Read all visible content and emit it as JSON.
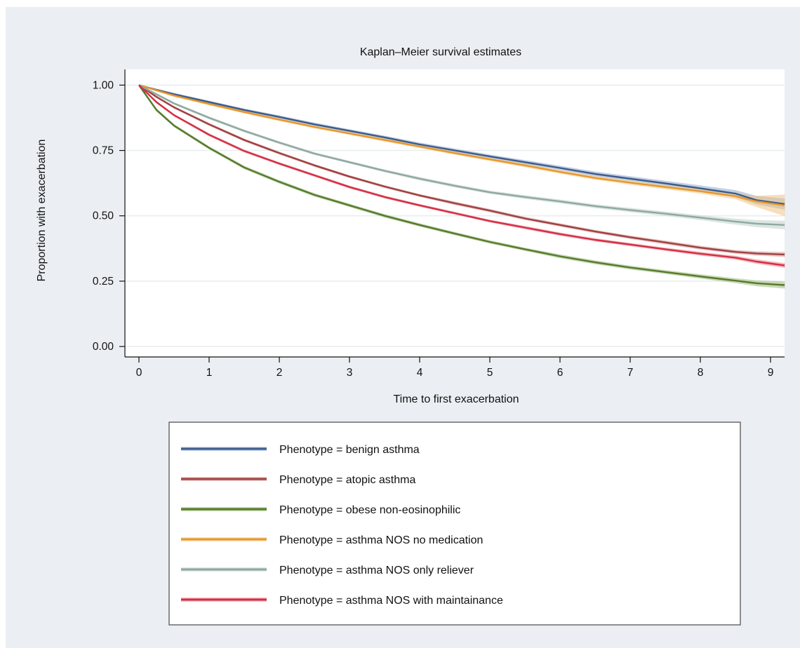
{
  "chart_data": {
    "type": "line",
    "title": "Kaplan–Meier survival estimates",
    "xlabel": "Time to first exacerbation",
    "ylabel": "Proportion with exacerbation",
    "xlim": [
      -0.2,
      9.2
    ],
    "ylim": [
      -0.04,
      1.06
    ],
    "xticks": [
      0,
      1,
      2,
      3,
      4,
      5,
      6,
      7,
      8,
      9
    ],
    "yticks": [
      0.0,
      0.25,
      0.5,
      0.75,
      1.0
    ],
    "ytick_labels": [
      "0.00",
      "0.25",
      "0.50",
      "0.75",
      "1.00"
    ],
    "grid": "horizontal",
    "legend_position": "bottom",
    "x": [
      0,
      0.25,
      0.5,
      1,
      1.5,
      2,
      2.5,
      3,
      3.5,
      4,
      4.5,
      5,
      5.5,
      6,
      6.5,
      7,
      7.5,
      8,
      8.5,
      8.8,
      9.2
    ],
    "series": [
      {
        "name": "Phenotype = benign asthma",
        "color": "#3a5b8c",
        "band_color": "#8fa9cf",
        "values": [
          1.0,
          0.982,
          0.965,
          0.935,
          0.905,
          0.878,
          0.85,
          0.825,
          0.8,
          0.773,
          0.75,
          0.727,
          0.705,
          0.683,
          0.66,
          0.642,
          0.624,
          0.605,
          0.585,
          0.56,
          0.545
        ],
        "ci_width": [
          0,
          0.003,
          0.004,
          0.004,
          0.004,
          0.005,
          0.005,
          0.005,
          0.005,
          0.006,
          0.006,
          0.006,
          0.007,
          0.007,
          0.008,
          0.008,
          0.009,
          0.01,
          0.012,
          0.015,
          0.02
        ]
      },
      {
        "name": "Phenotype = atopic asthma",
        "color": "#a0403f",
        "band_color": "#d49b9a",
        "values": [
          1.0,
          0.955,
          0.915,
          0.85,
          0.79,
          0.74,
          0.693,
          0.65,
          0.612,
          0.578,
          0.548,
          0.52,
          0.49,
          0.465,
          0.44,
          0.418,
          0.398,
          0.378,
          0.362,
          0.356,
          0.352
        ],
        "ci_width": [
          0,
          0.003,
          0.003,
          0.004,
          0.004,
          0.004,
          0.004,
          0.004,
          0.004,
          0.004,
          0.005,
          0.005,
          0.005,
          0.005,
          0.005,
          0.005,
          0.006,
          0.006,
          0.006,
          0.007,
          0.008
        ]
      },
      {
        "name": "Phenotype = obese non-eosinophilic",
        "color": "#557a2c",
        "band_color": "#9dbb7a",
        "values": [
          1.0,
          0.905,
          0.845,
          0.76,
          0.685,
          0.63,
          0.58,
          0.54,
          0.5,
          0.465,
          0.432,
          0.4,
          0.372,
          0.345,
          0.322,
          0.302,
          0.285,
          0.268,
          0.252,
          0.242,
          0.235
        ],
        "ci_width": [
          0,
          0.004,
          0.004,
          0.004,
          0.005,
          0.005,
          0.005,
          0.005,
          0.005,
          0.005,
          0.005,
          0.005,
          0.005,
          0.006,
          0.006,
          0.006,
          0.006,
          0.007,
          0.008,
          0.01,
          0.012
        ]
      },
      {
        "name": "Phenotype = asthma NOS no medication",
        "color": "#e8962a",
        "band_color": "#f2c684",
        "values": [
          1.0,
          0.98,
          0.96,
          0.928,
          0.897,
          0.868,
          0.84,
          0.815,
          0.79,
          0.765,
          0.74,
          0.716,
          0.693,
          0.668,
          0.645,
          0.627,
          0.61,
          0.594,
          0.575,
          0.555,
          0.54
        ],
        "ci_width": [
          0,
          0.003,
          0.003,
          0.004,
          0.004,
          0.004,
          0.004,
          0.004,
          0.005,
          0.005,
          0.005,
          0.005,
          0.006,
          0.006,
          0.006,
          0.007,
          0.007,
          0.008,
          0.01,
          0.02,
          0.04
        ]
      },
      {
        "name": "Phenotype = asthma NOS only reliever",
        "color": "#8fa8a0",
        "band_color": "#bfd0ca",
        "values": [
          1.0,
          0.965,
          0.93,
          0.875,
          0.825,
          0.78,
          0.738,
          0.705,
          0.672,
          0.642,
          0.615,
          0.59,
          0.572,
          0.555,
          0.537,
          0.522,
          0.508,
          0.493,
          0.478,
          0.47,
          0.465
        ],
        "ci_width": [
          0,
          0.003,
          0.003,
          0.004,
          0.004,
          0.004,
          0.004,
          0.004,
          0.004,
          0.005,
          0.005,
          0.005,
          0.006,
          0.006,
          0.006,
          0.007,
          0.007,
          0.008,
          0.01,
          0.012,
          0.015
        ]
      },
      {
        "name": "Phenotype = asthma NOS with maintainance",
        "color": "#d42e43",
        "band_color": "#ea8a97",
        "values": [
          1.0,
          0.935,
          0.885,
          0.81,
          0.748,
          0.7,
          0.655,
          0.61,
          0.572,
          0.54,
          0.51,
          0.48,
          0.455,
          0.43,
          0.408,
          0.39,
          0.372,
          0.355,
          0.34,
          0.325,
          0.31
        ],
        "ci_width": [
          0,
          0.003,
          0.003,
          0.004,
          0.004,
          0.004,
          0.004,
          0.004,
          0.004,
          0.004,
          0.004,
          0.004,
          0.005,
          0.005,
          0.005,
          0.005,
          0.005,
          0.006,
          0.006,
          0.007,
          0.008
        ]
      }
    ]
  }
}
